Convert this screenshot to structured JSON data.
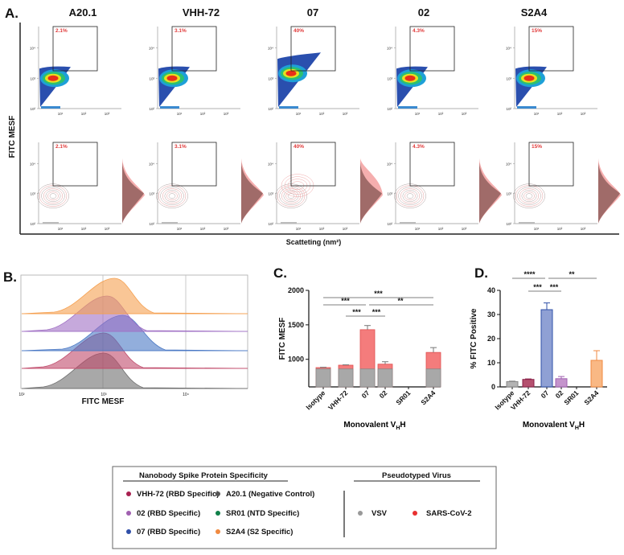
{
  "panel_labels": {
    "a": "A.",
    "b": "B.",
    "c": "C.",
    "d": "D."
  },
  "chart_data": [
    {
      "panel": "A",
      "type": "scatter",
      "title_samples": [
        "A20.1",
        "VHH-72",
        "07",
        "02",
        "S2A4"
      ],
      "gate_percent": [
        "2.1%",
        "3.1%",
        "40%",
        "4.3%",
        "15%"
      ],
      "ylabel": "FITC MESF",
      "xlabel": "Scatteting (nm²)",
      "y_ticks": [
        "10²",
        "10³",
        "10⁴"
      ],
      "x_ticks": [
        "10¹",
        "10²",
        "10³"
      ],
      "rows": [
        "density",
        "contour-overlay"
      ]
    },
    {
      "panel": "B",
      "type": "area",
      "xlabel": "FITC MESF",
      "x_scale": "log",
      "xlim": [
        100,
        50000
      ],
      "x_ticks": [
        "10²",
        "10³",
        "10⁴"
      ],
      "series": [
        {
          "name": "A20.1",
          "peak": 1000,
          "color": "#6e6e6e"
        },
        {
          "name": "VHH-72",
          "peak": 1000,
          "color": "#c04a6a"
        },
        {
          "name": "07",
          "peak": 1700,
          "color": "#4a78c4"
        },
        {
          "name": "02",
          "peak": 1100,
          "color": "#a070c4"
        },
        {
          "name": "S2A4",
          "peak": 1350,
          "color": "#f5a050"
        }
      ]
    },
    {
      "panel": "C",
      "type": "bar",
      "ylabel": "FITC MESF",
      "xlabel": "Monovalent V",
      "xlabel_sub": "H",
      "xlabel_end": "H",
      "ylim": [
        600,
        2000
      ],
      "y_ticks": [
        1000,
        1500,
        2000
      ],
      "categories": [
        "Isotype",
        "VHH-72",
        "07",
        "02",
        "SR01",
        "S2A4"
      ],
      "category_labels": [
        "Isotype",
        "VHH-72",
        "07",
        "02",
        "SR01",
        "S2A4"
      ],
      "series": [
        {
          "name": "VSV",
          "color": "#a8a8a8",
          "values": [
            860,
            860,
            860,
            860,
            null,
            860
          ]
        },
        {
          "name": "SARS-CoV-2",
          "color": "#f47c7c",
          "values": [
            880,
            915,
            1430,
            930,
            null,
            1100
          ],
          "error": [
            5,
            5,
            60,
            35,
            null,
            70
          ]
        }
      ],
      "significance": [
        {
          "from": 0,
          "to": 5,
          "label": "***",
          "level": 3
        },
        {
          "from": 0,
          "to": 2,
          "label": "***",
          "level": 2
        },
        {
          "from": 2,
          "to": 5,
          "label": "**",
          "level": 2
        },
        {
          "from": 1,
          "to": 2,
          "label": "***",
          "level": 1
        },
        {
          "from": 2,
          "to": 3,
          "label": "***",
          "level": 1
        }
      ]
    },
    {
      "panel": "D",
      "type": "bar",
      "ylabel": "% FITC Positive",
      "xlabel": "Monovalent V",
      "xlabel_sub": "H",
      "xlabel_end": "H",
      "ylim": [
        0,
        40
      ],
      "y_ticks": [
        0,
        10,
        20,
        30,
        40
      ],
      "categories": [
        "Isotype",
        "VHH-72",
        "07",
        "02",
        "SR01",
        "S2A4"
      ],
      "values": [
        2.2,
        3.1,
        32,
        3.4,
        0,
        11
      ],
      "error": [
        0.2,
        0.2,
        2.8,
        0.9,
        0,
        4
      ],
      "colors": [
        "#b4b4b4",
        "#b4506e",
        "#8fa0d4",
        "#c494cc",
        "#ffffff",
        "#f9b884"
      ],
      "edge_colors": [
        "#888888",
        "#8a2048",
        "#2f50a8",
        "#a060b0",
        "#ffffff",
        "#f08a40"
      ],
      "significance": [
        {
          "from": 0,
          "to": 2,
          "label": "****",
          "level": 2
        },
        {
          "from": 2,
          "to": 5,
          "label": "**",
          "level": 2
        },
        {
          "from": 1,
          "to": 2,
          "label": "***",
          "level": 1
        },
        {
          "from": 2,
          "to": 3,
          "label": "***",
          "level": 1
        }
      ]
    }
  ],
  "legend": {
    "title_left": "Nanobody Spike Protein Specificity",
    "title_right": "Pseudotyped Virus",
    "nanobodies": [
      {
        "label": "VHH-72 (RBD Specific)",
        "color": "#a8204f"
      },
      {
        "label": "02 (RBD Specific)",
        "color": "#a060b0"
      },
      {
        "label": "07 (RBD Specific)",
        "color": "#2f4fa8"
      },
      {
        "label": "A20.1 (Negative Control)",
        "color": "#555555"
      },
      {
        "label": "SR01 (NTD Specific)",
        "color": "#10804a"
      },
      {
        "label": "S2A4 (S2 Specific)",
        "color": "#f08a40"
      }
    ],
    "viruses": [
      {
        "label": "VSV",
        "color": "#999999"
      },
      {
        "label": "SARS-CoV-2",
        "color": "#e83030"
      }
    ]
  }
}
